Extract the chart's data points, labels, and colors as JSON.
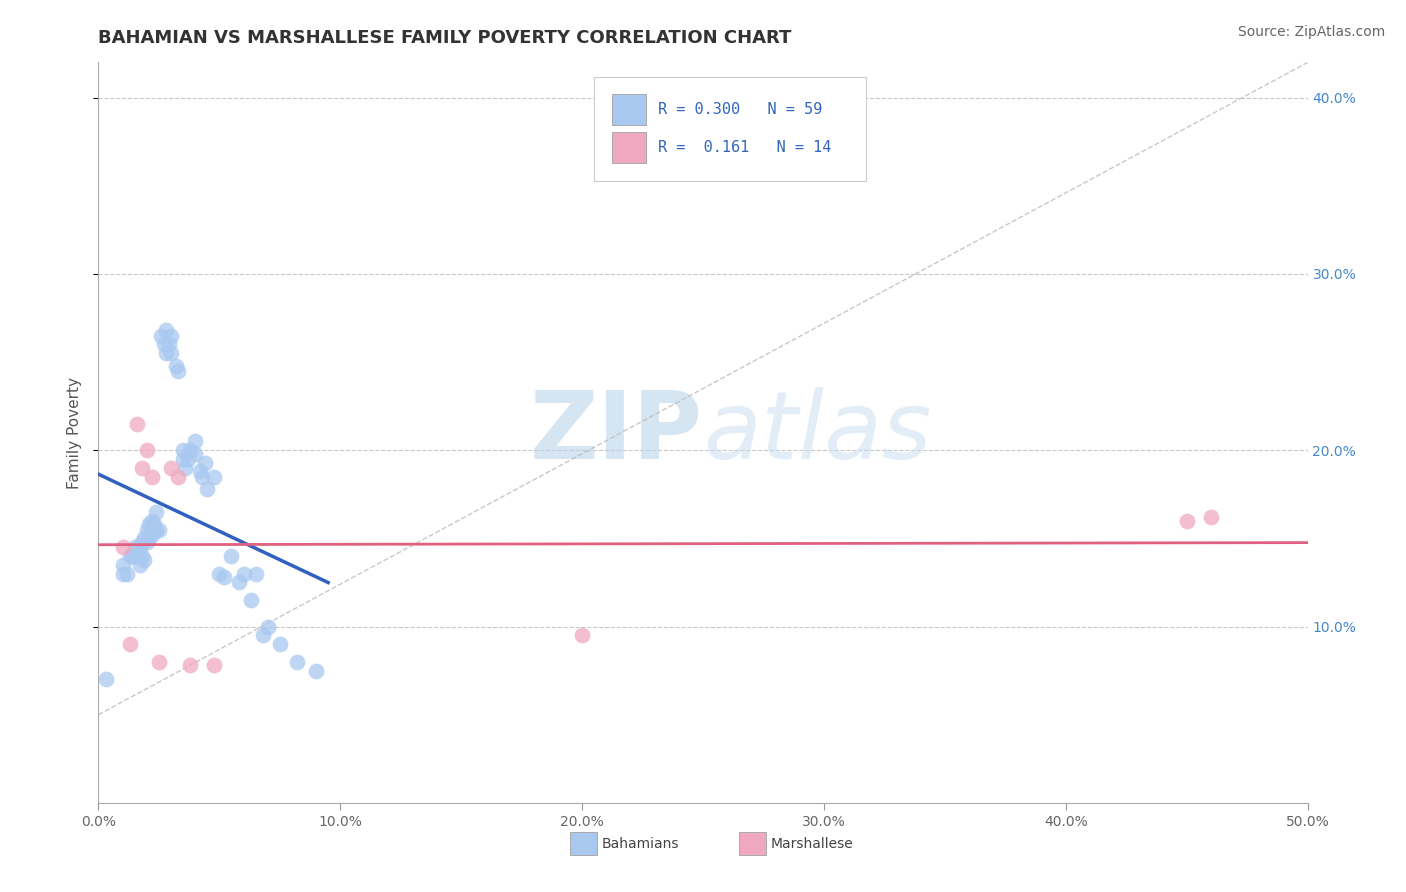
{
  "title": "BAHAMIAN VS MARSHALLESE FAMILY POVERTY CORRELATION CHART",
  "source": "Source: ZipAtlas.com",
  "ylabel": "Family Poverty",
  "xlim": [
    0.0,
    0.5
  ],
  "ylim": [
    0.0,
    0.42
  ],
  "xticks": [
    0.0,
    0.1,
    0.2,
    0.3,
    0.4,
    0.5
  ],
  "yticks_right": [
    0.1,
    0.2,
    0.3,
    0.4
  ],
  "ytick_labels_right": [
    "10.0%",
    "20.0%",
    "30.0%",
    "40.0%"
  ],
  "xtick_labels": [
    "0.0%",
    "10.0%",
    "20.0%",
    "30.0%",
    "40.0%",
    "50.0%"
  ],
  "legend_R_bahamian": "0.300",
  "legend_N_bahamian": "59",
  "legend_R_marshallese": "0.161",
  "legend_N_marshallese": "14",
  "bahamian_color": "#a8c8f0",
  "marshallese_color": "#f0a8c0",
  "bahamian_line_color": "#3060c0",
  "marshallese_line_color": "#e06080",
  "watermark_color": "#d0e4f5",
  "bahamian_x": [
    0.003,
    0.01,
    0.01,
    0.012,
    0.013,
    0.014,
    0.015,
    0.015,
    0.016,
    0.017,
    0.017,
    0.018,
    0.018,
    0.019,
    0.019,
    0.02,
    0.02,
    0.021,
    0.021,
    0.022,
    0.022,
    0.023,
    0.023,
    0.024,
    0.024,
    0.025,
    0.026,
    0.027,
    0.028,
    0.028,
    0.029,
    0.03,
    0.03,
    0.032,
    0.033,
    0.035,
    0.035,
    0.036,
    0.037,
    0.038,
    0.04,
    0.04,
    0.042,
    0.043,
    0.044,
    0.045,
    0.048,
    0.05,
    0.052,
    0.055,
    0.058,
    0.06,
    0.063,
    0.065,
    0.068,
    0.07,
    0.075,
    0.082,
    0.09
  ],
  "bahamian_y": [
    0.07,
    0.13,
    0.135,
    0.13,
    0.14,
    0.14,
    0.14,
    0.145,
    0.14,
    0.135,
    0.145,
    0.14,
    0.148,
    0.138,
    0.15,
    0.148,
    0.155,
    0.15,
    0.158,
    0.152,
    0.16,
    0.155,
    0.158,
    0.155,
    0.165,
    0.155,
    0.265,
    0.26,
    0.255,
    0.268,
    0.26,
    0.255,
    0.265,
    0.248,
    0.245,
    0.195,
    0.2,
    0.19,
    0.195,
    0.2,
    0.205,
    0.198,
    0.188,
    0.185,
    0.193,
    0.178,
    0.185,
    0.13,
    0.128,
    0.14,
    0.125,
    0.13,
    0.115,
    0.13,
    0.095,
    0.1,
    0.09,
    0.08,
    0.075
  ],
  "marshallese_x": [
    0.01,
    0.013,
    0.016,
    0.018,
    0.02,
    0.022,
    0.025,
    0.03,
    0.033,
    0.038,
    0.048,
    0.2,
    0.45,
    0.46
  ],
  "marshallese_y": [
    0.145,
    0.09,
    0.215,
    0.19,
    0.2,
    0.185,
    0.08,
    0.19,
    0.185,
    0.078,
    0.078,
    0.095,
    0.16,
    0.162
  ],
  "title_fontsize": 13,
  "axis_fontsize": 11,
  "tick_fontsize": 10,
  "legend_fontsize": 11,
  "source_fontsize": 10,
  "background_color": "#ffffff",
  "grid_color": "#c8c8c8"
}
